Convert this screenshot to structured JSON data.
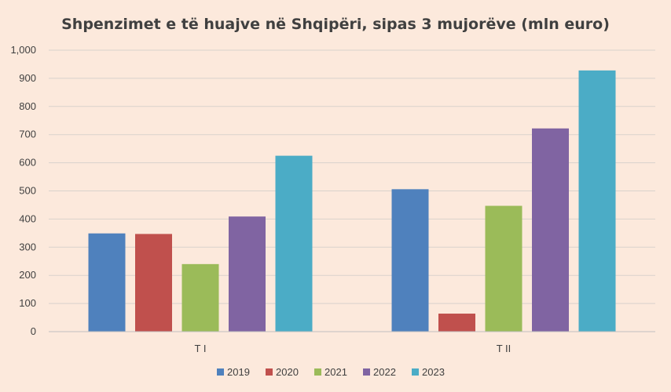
{
  "chart_data": {
    "type": "bar",
    "title": "Shpenzimet e të huajve në Shqipëri, sipas 3 mujorëve (mln euro)",
    "xlabel": "",
    "ylabel": "",
    "categories": [
      "T I",
      "T II"
    ],
    "series": [
      {
        "name": "2019",
        "values": [
          349,
          506
        ],
        "color": "#4f81bd"
      },
      {
        "name": "2020",
        "values": [
          347,
          64
        ],
        "color": "#c0504d"
      },
      {
        "name": "2021",
        "values": [
          240,
          447
        ],
        "color": "#9bbb59"
      },
      {
        "name": "2022",
        "values": [
          409,
          722
        ],
        "color": "#8064a2"
      },
      {
        "name": "2023",
        "values": [
          625,
          928
        ],
        "color": "#4bacc6"
      }
    ],
    "ylim": [
      0,
      1000
    ],
    "yticks": [
      "0",
      "100",
      "200",
      "300",
      "400",
      "500",
      "600",
      "700",
      "800",
      "900",
      "1,000"
    ],
    "grid": true,
    "legend_position": "bottom",
    "background": "#fce9dc"
  }
}
